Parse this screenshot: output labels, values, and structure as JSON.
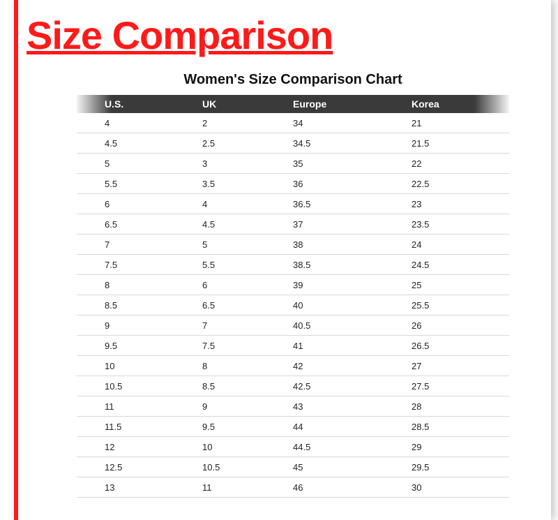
{
  "title": "Size Comparison",
  "chart": {
    "heading": "Women's Size Comparison Chart",
    "columns": [
      "U.S.",
      "UK",
      "Europe",
      "Korea"
    ],
    "rows": [
      [
        "4",
        "2",
        "34",
        "21"
      ],
      [
        "4.5",
        "2.5",
        "34.5",
        "21.5"
      ],
      [
        "5",
        "3",
        "35",
        "22"
      ],
      [
        "5.5",
        "3.5",
        "36",
        "22.5"
      ],
      [
        "6",
        "4",
        "36.5",
        "23"
      ],
      [
        "6.5",
        "4.5",
        "37",
        "23.5"
      ],
      [
        "7",
        "5",
        "38",
        "24"
      ],
      [
        "7.5",
        "5.5",
        "38.5",
        "24.5"
      ],
      [
        "8",
        "6",
        "39",
        "25"
      ],
      [
        "8.5",
        "6.5",
        "40",
        "25.5"
      ],
      [
        "9",
        "7",
        "40.5",
        "26"
      ],
      [
        "9.5",
        "7.5",
        "41",
        "26.5"
      ],
      [
        "10",
        "8",
        "42",
        "27"
      ],
      [
        "10.5",
        "8.5",
        "42.5",
        "27.5"
      ],
      [
        "11",
        "9",
        "43",
        "28"
      ],
      [
        "11.5",
        "9.5",
        "44",
        "28.5"
      ],
      [
        "12",
        "10",
        "44.5",
        "29"
      ],
      [
        "12.5",
        "10.5",
        "45",
        "29.5"
      ],
      [
        "13",
        "11",
        "46",
        "30"
      ]
    ]
  },
  "styling": {
    "accent_color": "#ff1a1a",
    "header_bg": "#3a3a3a",
    "header_text": "#ffffff",
    "row_border": "#d8d8d8",
    "page_bg": "#ffffff",
    "title_fontsize": 56,
    "chart_title_fontsize": 20,
    "cell_fontsize": 13,
    "header_fontsize": 14
  }
}
